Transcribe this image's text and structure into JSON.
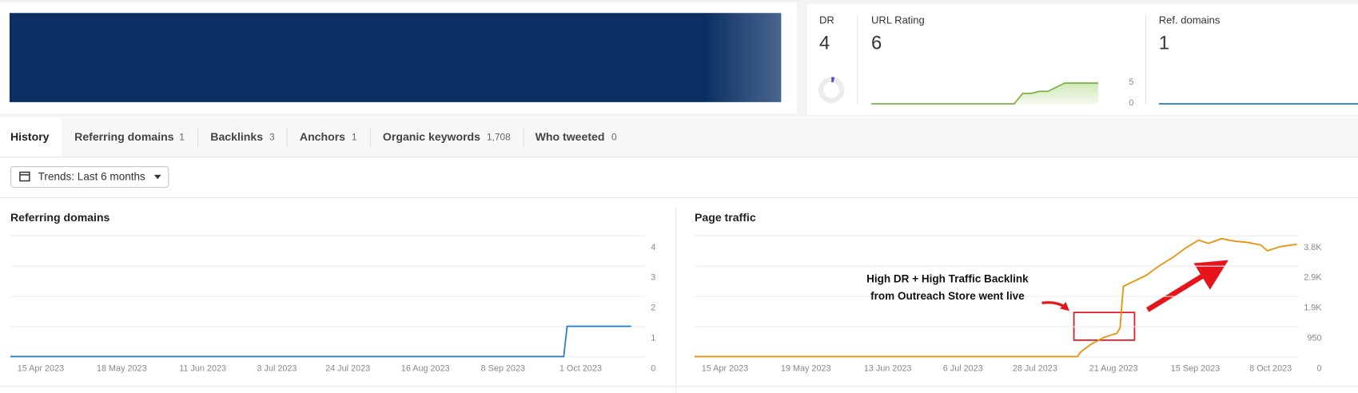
{
  "metrics": [
    {
      "label": "DR",
      "value": 4
    },
    {
      "label": "URL Rating",
      "value": 6
    },
    {
      "label": "Ref. domains",
      "value": 1
    }
  ],
  "tabs": [
    {
      "label": "History"
    },
    {
      "label": "Referring domains",
      "count": "1"
    },
    {
      "label": "Backlinks",
      "count": "3"
    },
    {
      "label": "Anchors",
      "count": "1"
    },
    {
      "label": "Organic keywords",
      "count": "1,708"
    },
    {
      "label": "Who tweeted",
      "count": "0"
    }
  ],
  "trends_button": "Trends: Last 6 months",
  "chart_data": [
    {
      "type": "area",
      "color": "#7cb342",
      "values": [
        0,
        0,
        0,
        0,
        0,
        0,
        0,
        0,
        0,
        0,
        0,
        0,
        0,
        0,
        0,
        0,
        0,
        0,
        2.5,
        2.5,
        3,
        3,
        4,
        5,
        5,
        5,
        5,
        5
      ],
      "ylim": [
        0,
        5
      ],
      "yticks": [
        0,
        5
      ]
    },
    {
      "type": "line",
      "color": "#1f7bd1",
      "values": [
        1,
        1,
        1,
        1,
        1,
        1,
        1,
        1,
        1,
        1
      ],
      "ylim": [
        1,
        5
      ]
    },
    {
      "type": "line",
      "title": "Referring domains",
      "color": "#1f7bd1",
      "x": [
        "15 Apr 2023",
        "26 Sep 2023",
        "27 Sep 2023",
        "16 Oct 2023"
      ],
      "values": [
        0,
        0,
        1,
        1
      ],
      "xlim": [
        "15 Apr 2023",
        "24 Oct 2023"
      ],
      "xticks": [
        "15 Apr 2023",
        "18 May 2023",
        "11 Jun 2023",
        "3 Jul 2023",
        "24 Jul 2023",
        "16 Aug 2023",
        "8 Sep 2023",
        "1 Oct 2023"
      ],
      "ylim": [
        0,
        4
      ],
      "yticks": [
        0,
        1,
        2,
        3,
        4
      ],
      "grid": true
    },
    {
      "type": "line",
      "title": "Page traffic",
      "color": "#f08c00",
      "x": [
        "15 Apr 2023",
        "10 Aug 2023",
        "11 Aug 2023",
        "14 Aug 2023",
        "18 Aug 2023",
        "22 Aug 2023",
        "23 Aug 2023",
        "24 Aug 2023",
        "27 Aug 2023",
        "31 Aug 2023",
        "4 Sep 2023",
        "8 Sep 2023",
        "12 Sep 2023",
        "16 Sep 2023",
        "19 Sep 2023",
        "23 Sep 2023",
        "27 Sep 2023",
        "1 Oct 2023",
        "5 Oct 2023",
        "7 Oct 2023",
        "11 Oct 2023",
        "16 Oct 2023"
      ],
      "values": [
        0,
        0,
        150,
        380,
        600,
        730,
        900,
        2200,
        2350,
        2550,
        2850,
        3100,
        3400,
        3650,
        3550,
        3700,
        3620,
        3580,
        3500,
        3320,
        3450,
        3520
      ],
      "xlim": [
        "15 Apr 2023",
        "22 Oct 2023"
      ],
      "xticks": [
        "15 Apr 2023",
        "19 May 2023",
        "13 Jun 2023",
        "6 Jul 2023",
        "28 Jul 2023",
        "21 Aug 2023",
        "15 Sep 2023",
        "8 Oct 2023"
      ],
      "ylim": [
        0,
        3800
      ],
      "yticks": [
        0,
        950,
        {
          "value": 1900,
          "label": "1.9K"
        },
        {
          "value": 2850,
          "label": "2.9K"
        },
        {
          "value": 3800,
          "label": "3.8K"
        }
      ],
      "grid": true,
      "annotation": [
        "High DR + High Traffic Backlink",
        "from Outreach Store went live"
      ]
    }
  ]
}
